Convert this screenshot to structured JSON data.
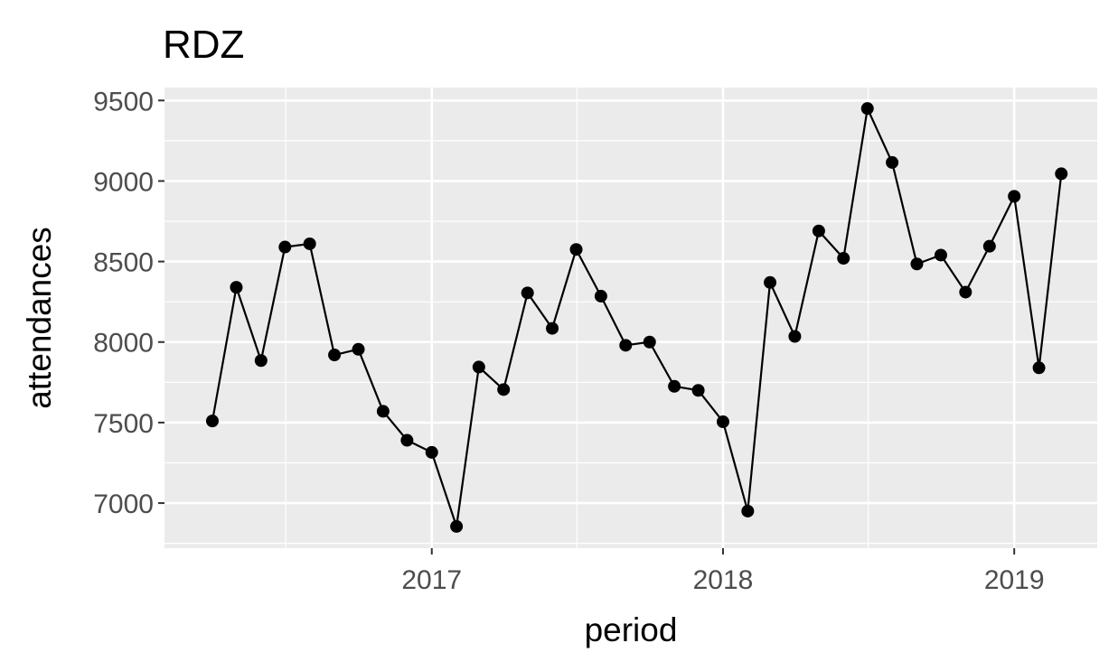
{
  "chart_data": {
    "type": "line",
    "title": "RDZ",
    "xlabel": "period",
    "ylabel": "attendances",
    "x_ticks": [
      "2017",
      "2018",
      "2019"
    ],
    "y_ticks": [
      7000,
      7500,
      8000,
      8500,
      9000,
      9500
    ],
    "ylim": [
      6720,
      9580
    ],
    "xlim": [
      "2016-02-01",
      "2019-04-15"
    ],
    "grid": true,
    "points_marked": true,
    "colors": {
      "panel": "#ebebeb",
      "grid": "#ffffff",
      "line": "#000000"
    },
    "x": [
      "2016-04-01",
      "2016-05-01",
      "2016-06-01",
      "2016-07-01",
      "2016-08-01",
      "2016-09-01",
      "2016-10-01",
      "2016-11-01",
      "2016-12-01",
      "2017-01-01",
      "2017-02-01",
      "2017-03-01",
      "2017-04-01",
      "2017-05-01",
      "2017-06-01",
      "2017-07-01",
      "2017-08-01",
      "2017-09-01",
      "2017-10-01",
      "2017-11-01",
      "2017-12-01",
      "2018-01-01",
      "2018-02-01",
      "2018-03-01",
      "2018-04-01",
      "2018-05-01",
      "2018-06-01",
      "2018-07-01",
      "2018-08-01",
      "2018-09-01",
      "2018-10-01",
      "2018-11-01",
      "2018-12-01",
      "2019-01-01",
      "2019-02-01",
      "2019-03-01"
    ],
    "series": [
      {
        "values": [
          7510,
          8340,
          7885,
          8590,
          8610,
          7920,
          7955,
          7570,
          7390,
          7315,
          6855,
          7845,
          7705,
          8305,
          8085,
          8575,
          8285,
          7980,
          8000,
          7725,
          7700,
          7505,
          6950,
          8370,
          8035,
          8690,
          8520,
          9450,
          9115,
          8485,
          8540,
          8310,
          8595,
          8905,
          7840,
          9045
        ]
      }
    ]
  }
}
